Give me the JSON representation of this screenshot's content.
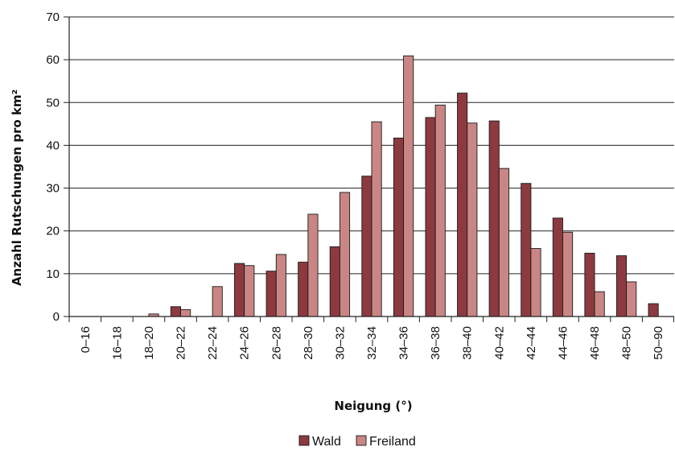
{
  "chart_data": {
    "type": "bar",
    "categories": [
      "0–16",
      "16–18",
      "18–20",
      "20–22",
      "22–24",
      "24–26",
      "26–28",
      "28–30",
      "30–32",
      "32–34",
      "34–36",
      "36–38",
      "38–40",
      "40–42",
      "42–44",
      "44–46",
      "46–48",
      "48–50",
      "50–90"
    ],
    "series": [
      {
        "name": "Wald",
        "color": "#8c3a3f",
        "values": [
          0,
          0,
          0,
          2.3,
          0,
          12.4,
          10.6,
          12.7,
          16.3,
          32.8,
          41.7,
          46.5,
          52.2,
          45.7,
          31.1,
          23.0,
          14.8,
          14.2,
          3.0
        ]
      },
      {
        "name": "Freiland",
        "color": "#c98685",
        "values": [
          0,
          0,
          0.6,
          1.6,
          7.0,
          11.9,
          14.5,
          23.9,
          29.0,
          45.5,
          60.9,
          49.4,
          45.2,
          34.6,
          15.9,
          19.7,
          5.8,
          8.1,
          0
        ]
      }
    ],
    "xlabel": "Neigung (°)",
    "ylabel": "Anzahl Rutschungen pro km²",
    "ylim": [
      0,
      70
    ],
    "yticks": [
      0,
      10,
      20,
      30,
      40,
      50,
      60,
      70
    ],
    "grid": true,
    "legend": "bottom"
  }
}
